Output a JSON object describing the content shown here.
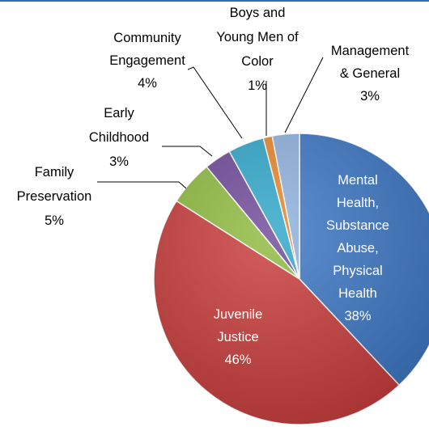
{
  "chart_data": {
    "type": "pie",
    "title": "",
    "slices": [
      {
        "label_lines": [
          "Mental",
          "Health,",
          "Substance",
          "Abuse,",
          "Physical",
          "Health"
        ],
        "value": 38,
        "value_label": "38%",
        "color": "#3b76c4",
        "label_color": "#ffffff",
        "label_side": "inside"
      },
      {
        "label_lines": [
          "Juvenile",
          "Justice"
        ],
        "value": 46,
        "value_label": "46%",
        "color": "#c83c3a",
        "label_color": "#ffffff",
        "label_side": "inside"
      },
      {
        "label_lines": [
          "Family",
          "Preservation"
        ],
        "value": 5,
        "value_label": "5%",
        "color": "#8fbb3e",
        "label_color": "#000000",
        "label_side": "left"
      },
      {
        "label_lines": [
          "Early",
          "Childhood"
        ],
        "value": 3,
        "value_label": "3%",
        "color": "#6f4a9a",
        "label_color": "#000000",
        "label_side": "left"
      },
      {
        "label_lines": [
          "Community",
          "Engagement"
        ],
        "value": 4,
        "value_label": "4%",
        "color": "#2fa7c9",
        "label_color": "#000000",
        "label_side": "left"
      },
      {
        "label_lines": [
          "Boys and",
          "Young Men of",
          "Color"
        ],
        "value": 1,
        "value_label": "1%",
        "color": "#e8862a",
        "label_color": "#000000",
        "label_side": "top"
      },
      {
        "label_lines": [
          "Management",
          "& General"
        ],
        "value": 3,
        "value_label": "3%",
        "color": "#8fb2de",
        "label_color": "#000000",
        "label_side": "right"
      }
    ],
    "legend": "none"
  }
}
